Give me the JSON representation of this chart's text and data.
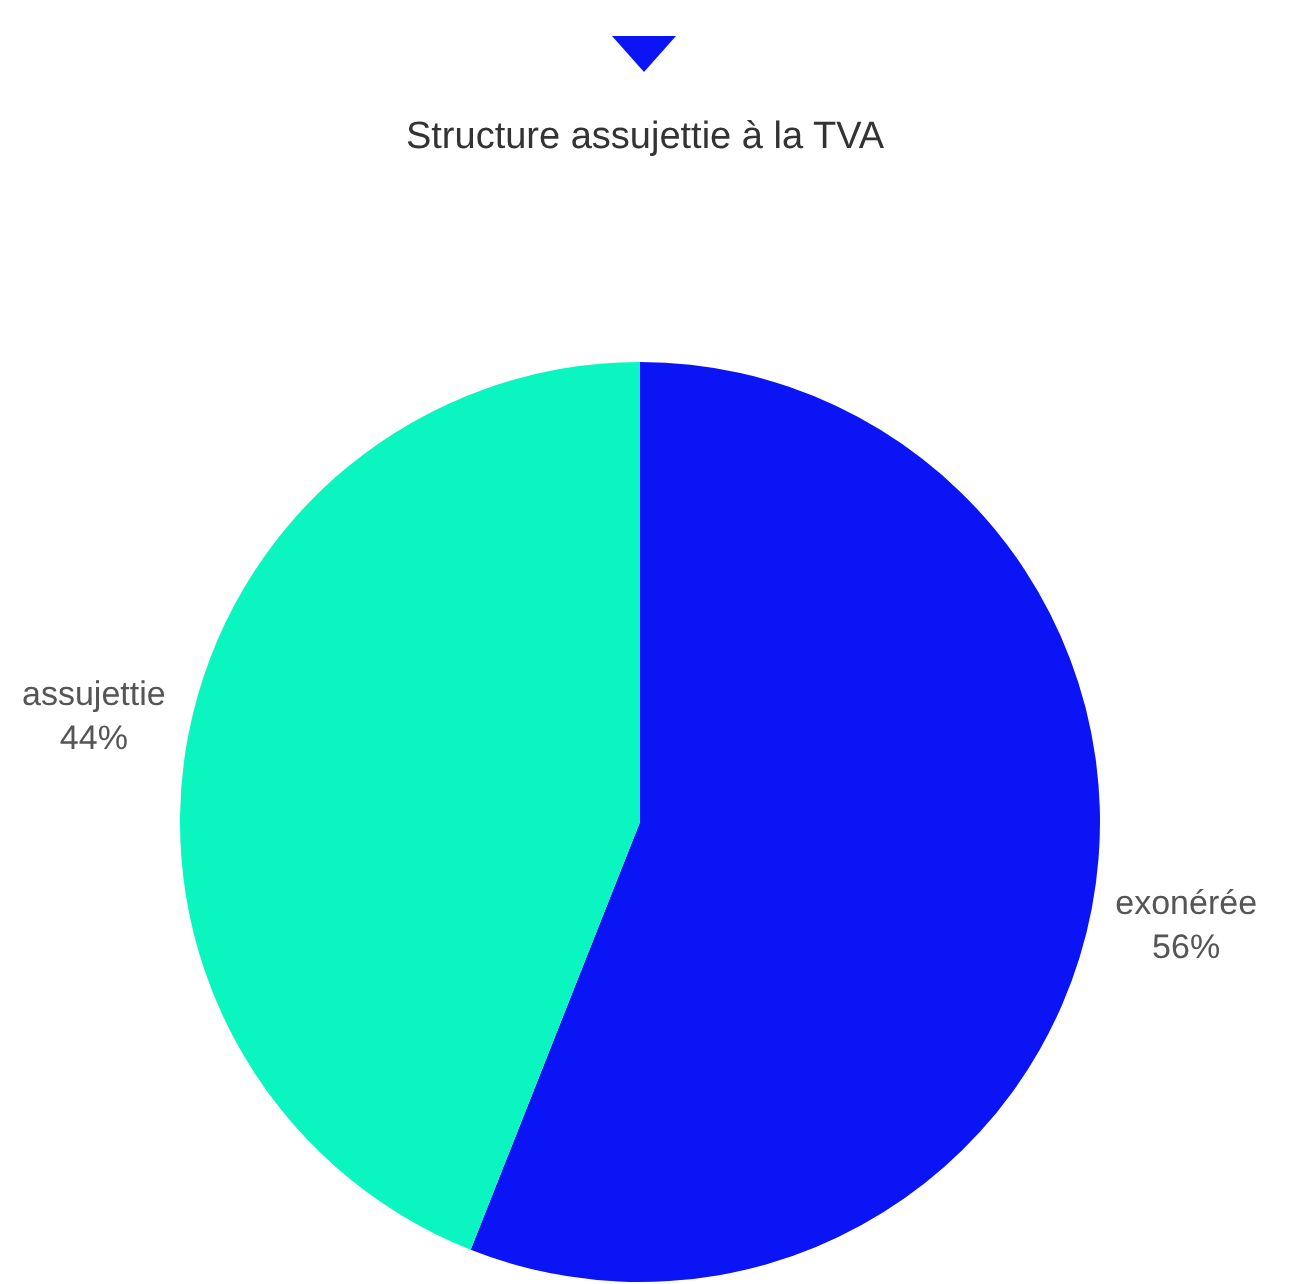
{
  "chart_data": {
    "type": "pie",
    "title": "Structure assujettie à la TVA",
    "categories": [
      "exonérée",
      "assujettie"
    ],
    "values": [
      56,
      44
    ],
    "colors": [
      "#0a14f5",
      "#0af5c0"
    ],
    "value_labels": [
      "56%",
      "44%"
    ],
    "legend": false
  }
}
